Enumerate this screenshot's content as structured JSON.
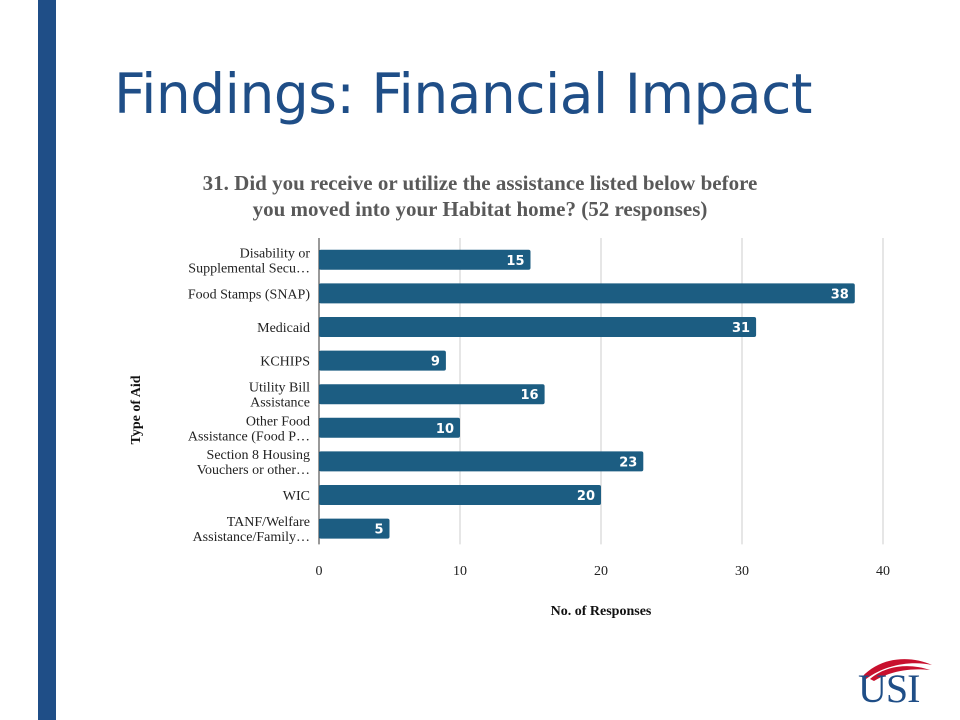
{
  "slide": {
    "title": "Findings: Financial Impact",
    "logo_text": "USI"
  },
  "chart_data": {
    "type": "bar",
    "orientation": "horizontal",
    "title_lines": [
      "31. Did you receive or utilize the assistance listed below before",
      "you moved into your Habitat home? (52 responses)"
    ],
    "categories": [
      [
        "Disability or",
        "Supplemental Secu…"
      ],
      [
        "Food Stamps (SNAP)"
      ],
      [
        "Medicaid"
      ],
      [
        "KCHIPS"
      ],
      [
        "Utility Bill",
        "Assistance"
      ],
      [
        "Other Food",
        "Assistance (Food P…"
      ],
      [
        "Section 8 Housing",
        "Vouchers or other…"
      ],
      [
        "WIC"
      ],
      [
        "TANF/Welfare",
        "Assistance/Family…"
      ]
    ],
    "values": [
      15,
      38,
      31,
      9,
      16,
      10,
      23,
      20,
      5
    ],
    "xlabel": "No. of Responses",
    "ylabel": "Type of Aid",
    "xlim": [
      0,
      40
    ],
    "xticks": [
      "0",
      "10",
      "20",
      "30",
      "40"
    ],
    "grid": true,
    "legend": "none",
    "bar_color": "#1c5d82",
    "grid_color": "#cccccc"
  },
  "colors": {
    "brand_blue": "#1f4e87",
    "title_gray": "#595959",
    "logo_red": "#c8102e"
  }
}
